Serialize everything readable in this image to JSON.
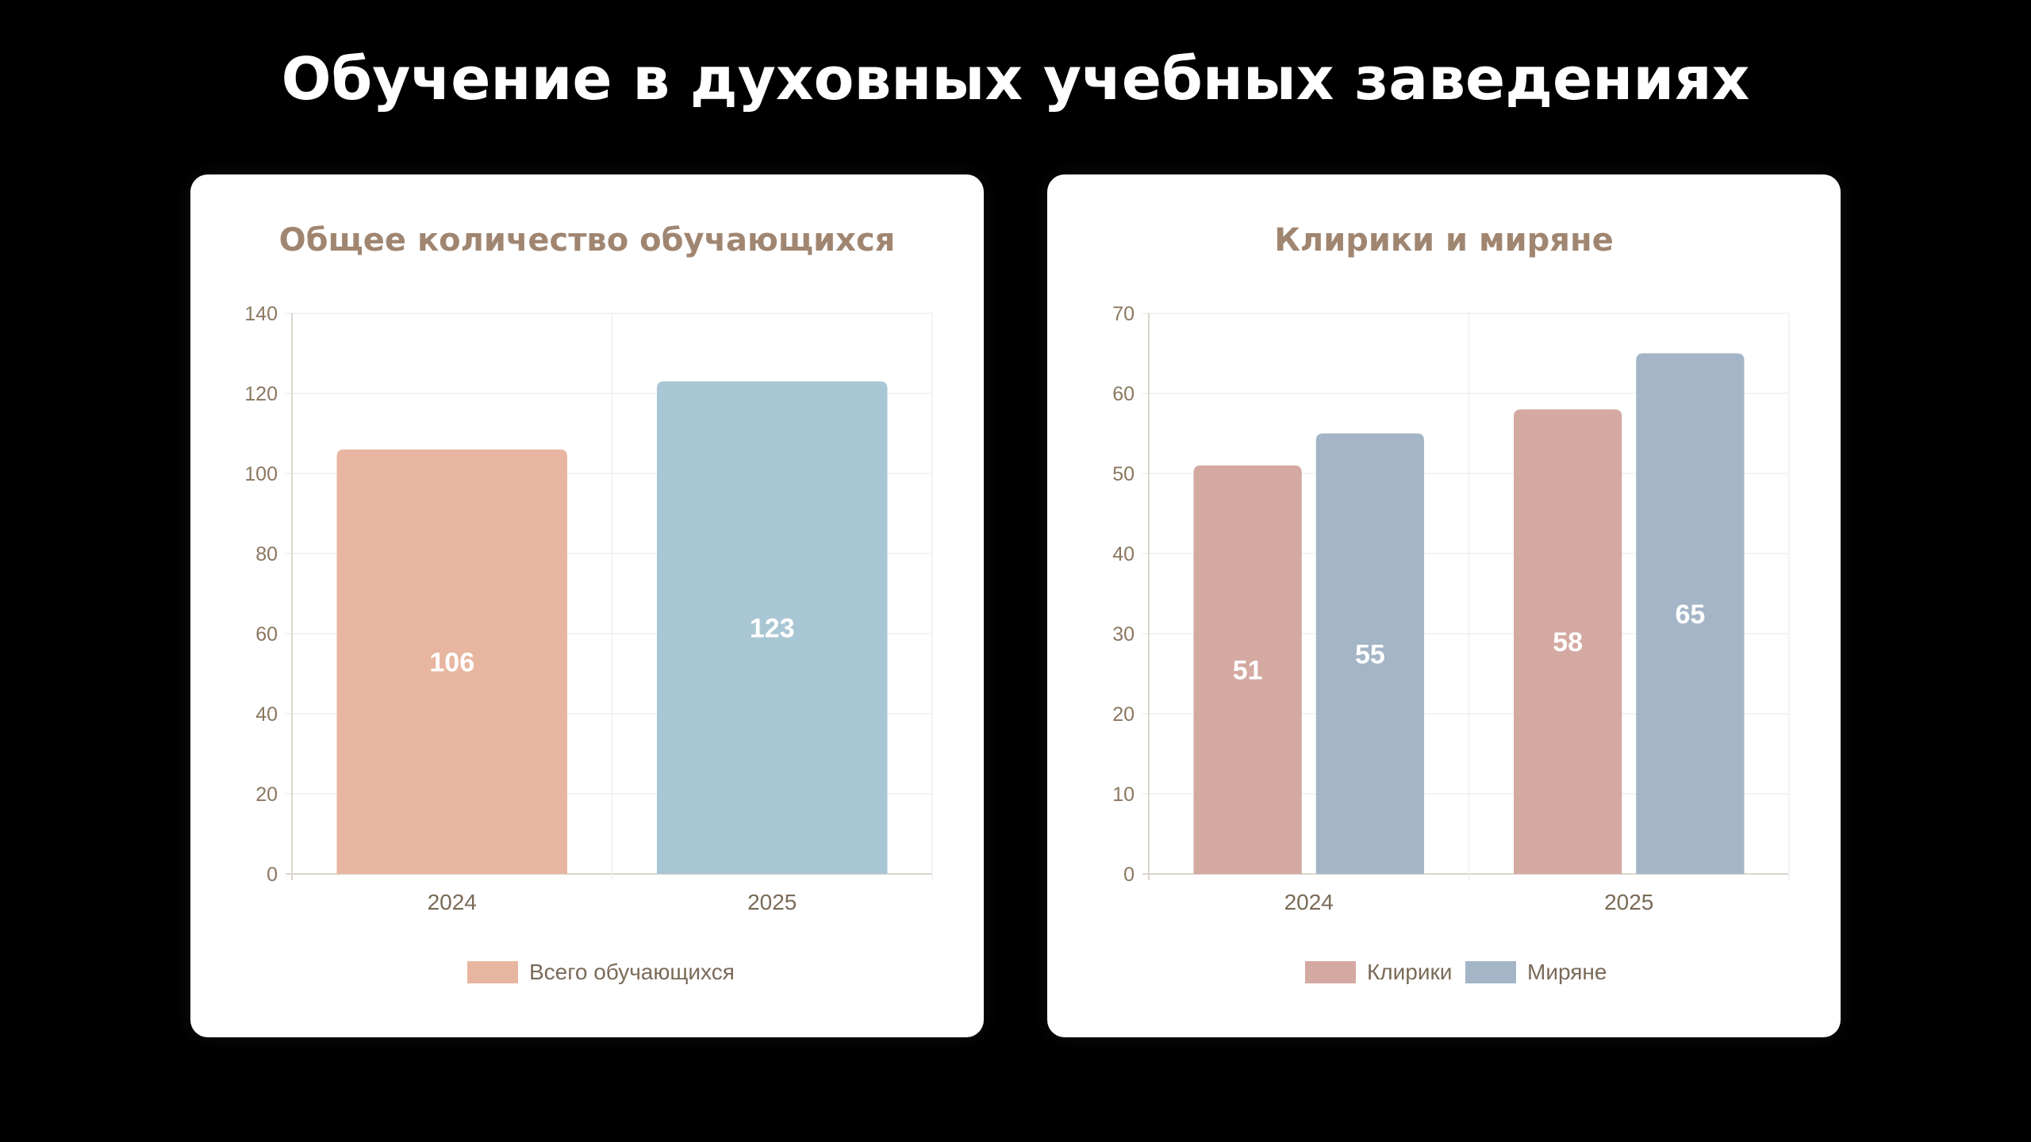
{
  "page": {
    "title": "Обучение в духовных учебных заведениях"
  },
  "chart_data": [
    {
      "type": "bar",
      "title": "Общее количество обучающихся",
      "categories": [
        "2024",
        "2025"
      ],
      "ylim": [
        0,
        140
      ],
      "yticks": [
        0,
        20,
        40,
        60,
        80,
        100,
        120,
        140
      ],
      "grid": true,
      "legend_position": "bottom",
      "series": [
        {
          "name": "Всего обучающихся",
          "values": [
            106,
            123
          ],
          "colors": [
            "#e8b6a0",
            "#a9c6d4"
          ],
          "legend_color": "#e8b6a0"
        }
      ]
    },
    {
      "type": "bar",
      "title": "Клирики и миряне",
      "categories": [
        "2024",
        "2025"
      ],
      "ylim": [
        0,
        70
      ],
      "yticks": [
        0,
        10,
        20,
        30,
        40,
        50,
        60,
        70
      ],
      "grid": true,
      "legend_position": "bottom",
      "series": [
        {
          "name": "Клирики",
          "values": [
            51,
            58
          ],
          "colors": [
            "#d4a9a2",
            "#d4a9a2"
          ],
          "legend_color": "#d4a9a2"
        },
        {
          "name": "Миряне",
          "values": [
            55,
            65
          ],
          "colors": [
            "#a3b5c6",
            "#a3b5c6"
          ],
          "legend_color": "#a3b5c6"
        }
      ]
    }
  ]
}
